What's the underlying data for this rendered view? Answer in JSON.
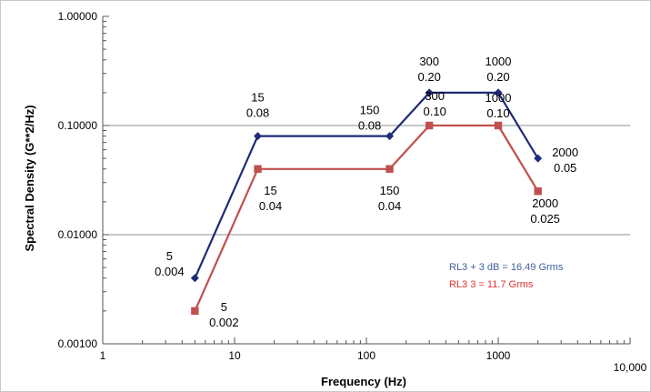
{
  "chart_data": {
    "type": "line",
    "title": "",
    "xlabel": "Frequency (Hz)",
    "ylabel": "Spectral Density (G**2/Hz)",
    "x_scale": "log",
    "y_scale": "log",
    "xlim": [
      1,
      10000
    ],
    "ylim": [
      0.001,
      1.0
    ],
    "grid": "horizontal major",
    "x_ticks": [
      "1",
      "10",
      "100",
      "1000",
      "10,000"
    ],
    "y_ticks": [
      "0.00100",
      "0.01000",
      "0.10000",
      "1.00000"
    ],
    "series": [
      {
        "name": "RL3 + 3 dB = 16.49 Grms",
        "color": "#1f2a78",
        "marker": "diamond",
        "x": [
          5,
          15,
          150,
          300,
          1000,
          2000
        ],
        "y": [
          0.004,
          0.08,
          0.08,
          0.2,
          0.2,
          0.05
        ],
        "labels": [
          [
            "5",
            "0.004"
          ],
          [
            "15",
            "0.08"
          ],
          [
            "150",
            "0.08"
          ],
          [
            "300",
            "0.20"
          ],
          [
            "1000",
            "0.20"
          ],
          [
            "2000",
            "0.05"
          ]
        ]
      },
      {
        "name": "RL3 3 = 11.7 Grms",
        "color": "#c0504d",
        "marker": "square",
        "x": [
          5,
          15,
          150,
          300,
          1000,
          2000
        ],
        "y": [
          0.002,
          0.04,
          0.04,
          0.1,
          0.1,
          0.025
        ],
        "labels": [
          [
            "5",
            "0.002"
          ],
          [
            "15",
            "0.04"
          ],
          [
            "150",
            "0.04"
          ],
          [
            "300",
            "0.10"
          ],
          [
            "1000",
            "0.10"
          ],
          [
            "2000",
            "0.025"
          ]
        ]
      }
    ],
    "legend_text_colors": [
      "#3f5f9f",
      "#e03030"
    ]
  }
}
